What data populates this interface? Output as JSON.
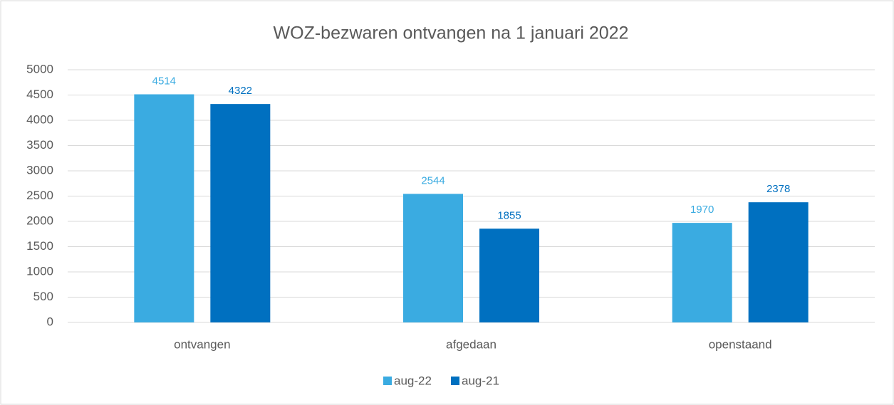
{
  "chart_data": {
    "type": "bar",
    "title": "WOZ-bezwaren ontvangen na 1 januari 2022",
    "categories": [
      "ontvangen",
      "afgedaan",
      "openstaand"
    ],
    "series": [
      {
        "name": "aug-22",
        "color": "#3aabe1",
        "values": [
          4514,
          2544,
          1970
        ]
      },
      {
        "name": "aug-21",
        "color": "#0070c0",
        "values": [
          4322,
          1855,
          2378
        ]
      }
    ],
    "ylim": [
      0,
      5000
    ],
    "yticks": [
      0,
      500,
      1000,
      1500,
      2000,
      2500,
      3000,
      3500,
      4000,
      4500,
      5000
    ],
    "grid": true,
    "legend": "bottom"
  }
}
